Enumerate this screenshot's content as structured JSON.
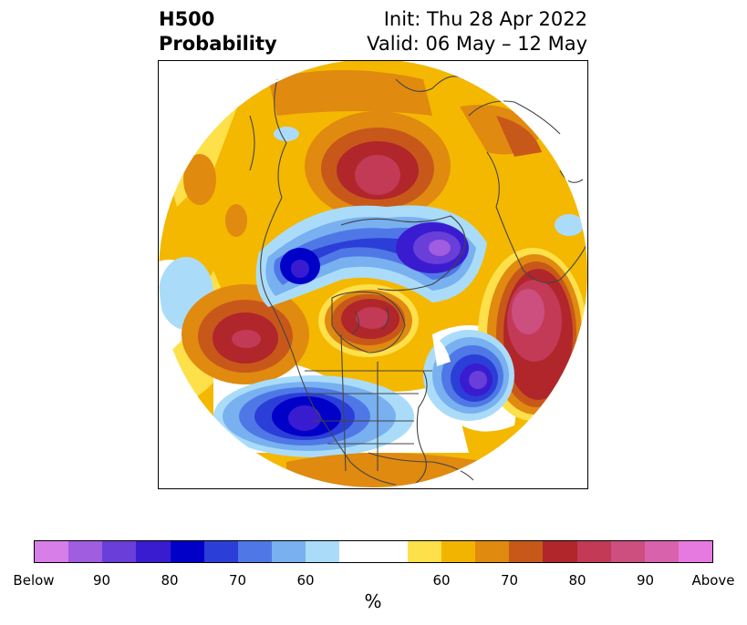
{
  "title": {
    "left_line1": "H500",
    "left_line2": "Probability",
    "right_line1": "Init: Thu 28 Apr 2022",
    "right_line2": "Valid: 06 May – 12 May"
  },
  "colorbar": {
    "unit_label": "%",
    "colors": [
      "#d77ee8",
      "#a05de0",
      "#6a3ed8",
      "#3a1cd0",
      "#0000c8",
      "#2b3fd8",
      "#4f78e6",
      "#78b0f0",
      "#aadcfa",
      "#ffffff",
      "#ffffff",
      "#fde04a",
      "#f2b400",
      "#e08a10",
      "#c8581a",
      "#b0262a",
      "#c23a56",
      "#cc4f80",
      "#d863ac",
      "#e67ae0"
    ],
    "ticks": [
      "Below",
      "90",
      "80",
      "70",
      "60",
      "60",
      "70",
      "80",
      "90",
      "Above"
    ]
  }
}
